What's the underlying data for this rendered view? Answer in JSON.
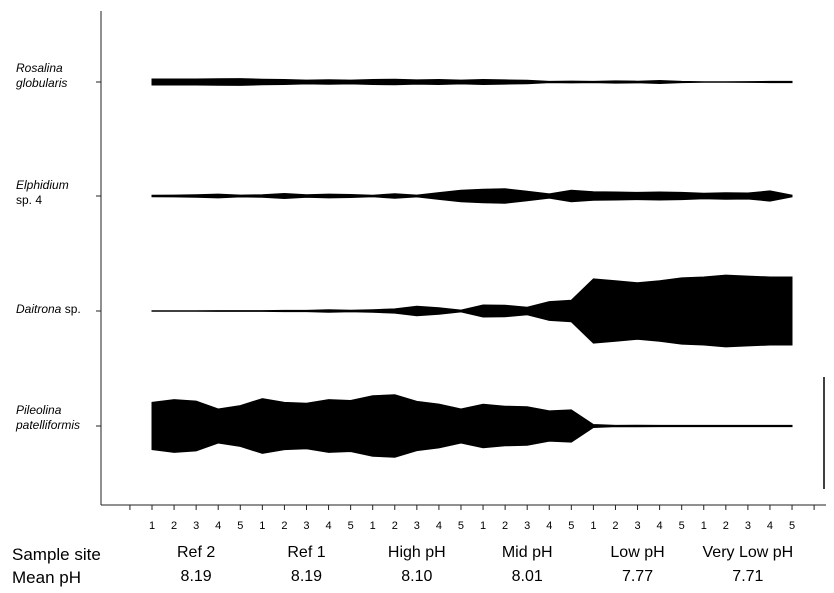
{
  "chart_data": {
    "type": "kite",
    "row_label": "Sample site",
    "mean_label": "Mean pH",
    "groups": [
      {
        "name": "Ref 2",
        "mean_ph": "8.19",
        "sites": [
          "1",
          "2",
          "3",
          "4",
          "5"
        ]
      },
      {
        "name": "Ref 1",
        "mean_ph": "8.19",
        "sites": [
          "1",
          "2",
          "3",
          "4",
          "5"
        ]
      },
      {
        "name": "High pH",
        "mean_ph": "8.10",
        "sites": [
          "1",
          "2",
          "3",
          "4",
          "5"
        ]
      },
      {
        "name": "Mid pH",
        "mean_ph": "8.01",
        "sites": [
          "1",
          "2",
          "3",
          "4",
          "5"
        ]
      },
      {
        "name": "Low pH",
        "mean_ph": "7.77",
        "sites": [
          "1",
          "2",
          "3",
          "4",
          "5"
        ]
      },
      {
        "name": "Very Low pH",
        "mean_ph": "7.71",
        "sites": [
          "1",
          "2",
          "3",
          "4",
          "5"
        ]
      }
    ],
    "species": [
      {
        "name": "Rosalina",
        "name2": "globularis",
        "suffix": "",
        "values": [
          16,
          16,
          16,
          17,
          18,
          15,
          13,
          10,
          12,
          10,
          13,
          15,
          11,
          13,
          10,
          13,
          11,
          9,
          3,
          5,
          3,
          6,
          4,
          8,
          3,
          1,
          1,
          2,
          3,
          3
        ]
      },
      {
        "name": "Elphidium",
        "name2": "",
        "suffix2": "sp. 4",
        "values": [
          4,
          5,
          7,
          10,
          5,
          7,
          13,
          7,
          10,
          8,
          4,
          12,
          5,
          18,
          30,
          36,
          38,
          25,
          11,
          30,
          23,
          21,
          19,
          21,
          19,
          15,
          17,
          16,
          27,
          4
        ]
      },
      {
        "name": "Daitrona",
        "name2": "",
        "suffix": " sp.",
        "values": [
          1,
          1,
          1,
          2,
          2,
          2,
          3,
          3,
          7,
          4,
          7,
          11,
          25,
          17,
          5,
          32,
          30,
          20,
          50,
          57,
          170,
          160,
          150,
          160,
          175,
          180,
          190,
          185,
          180,
          180
        ]
      },
      {
        "name": "Pileolina",
        "name2": "patelliformis",
        "suffix": "",
        "values": [
          125,
          140,
          132,
          90,
          108,
          145,
          125,
          120,
          140,
          135,
          160,
          165,
          130,
          116,
          90,
          115,
          105,
          102,
          80,
          85,
          8,
          3,
          4,
          3,
          3,
          3,
          3,
          3,
          3,
          3
        ]
      }
    ]
  }
}
